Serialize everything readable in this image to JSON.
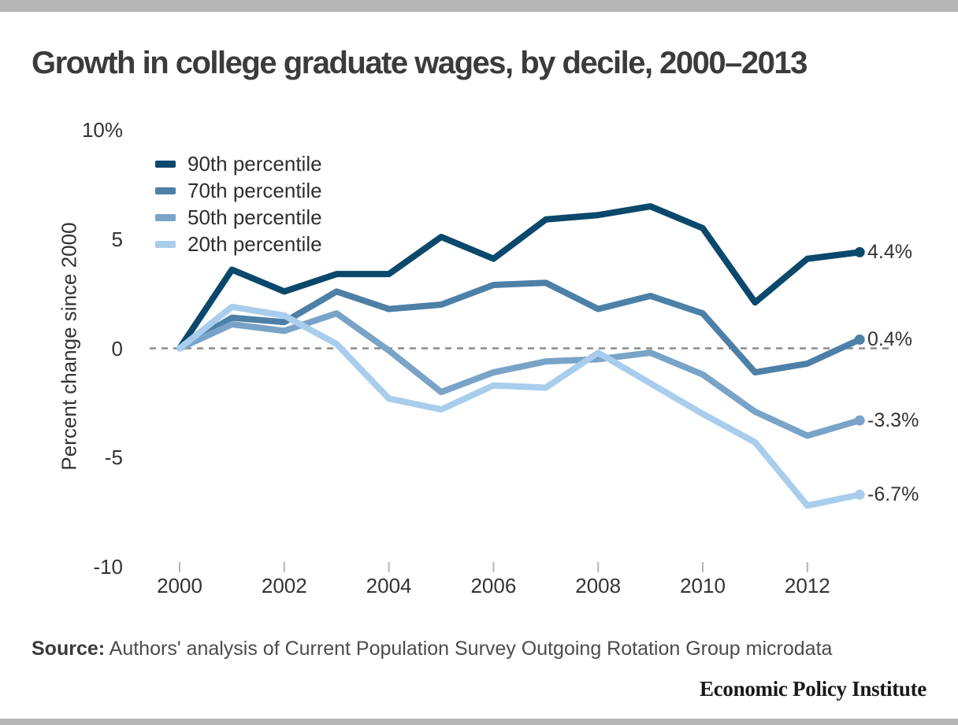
{
  "page": {
    "source": {
      "label": "Source:",
      "text": " Authors' analysis of Current Population Survey Outgoing Rotation Group microdata"
    },
    "footer_brand": "Economic Policy Institute",
    "colors": {
      "border_bar": "#b6b6b6",
      "title_text": "#3b3b3b",
      "axis_text": "#333333",
      "zero_line": "#8c8c8c",
      "tick_mark": "#b5b5b5"
    }
  },
  "chart_data": {
    "type": "line",
    "title": "Growth in college graduate wages, by decile, 2000–2013",
    "xlabel": "",
    "ylabel": "Percent change since 2000",
    "x": [
      2000,
      2001,
      2002,
      2003,
      2004,
      2005,
      2006,
      2007,
      2008,
      2009,
      2010,
      2011,
      2012,
      2013
    ],
    "x_tick_labels": [
      "2000",
      "2002",
      "2004",
      "2006",
      "2008",
      "2010",
      "2012"
    ],
    "x_tick_years": [
      2000,
      2002,
      2004,
      2006,
      2008,
      2010,
      2012
    ],
    "y_ticks": [
      {
        "label": "10%",
        "value": 10
      },
      {
        "label": "5",
        "value": 5
      },
      {
        "label": "0",
        "value": 0
      },
      {
        "label": "-5",
        "value": -5
      },
      {
        "label": "-10",
        "value": -10
      }
    ],
    "ylim": [
      -10,
      10
    ],
    "grid": false,
    "zero_line_style": "dashed",
    "legend_position": "top-left",
    "series": [
      {
        "name": "90th percentile",
        "color": "#0a486c",
        "end_label": "4.4%",
        "values": [
          0,
          3.6,
          2.6,
          3.4,
          3.4,
          5.1,
          4.1,
          5.9,
          6.1,
          6.5,
          5.5,
          2.1,
          4.1,
          4.4
        ]
      },
      {
        "name": "70th percentile",
        "color": "#4d80a7",
        "end_label": "0.4%",
        "values": [
          0,
          1.4,
          1.2,
          2.6,
          1.8,
          2.0,
          2.9,
          3.0,
          1.8,
          2.4,
          1.6,
          -1.1,
          -0.7,
          0.4
        ]
      },
      {
        "name": "50th percentile",
        "color": "#79a3c7",
        "end_label": "-3.3%",
        "values": [
          0,
          1.1,
          0.8,
          1.6,
          -0.1,
          -2.0,
          -1.1,
          -0.6,
          -0.5,
          -0.2,
          -1.2,
          -2.9,
          -4.0,
          -3.3
        ]
      },
      {
        "name": "20th percentile",
        "color": "#a9cdec",
        "end_label": "-6.7%",
        "values": [
          0,
          1.9,
          1.5,
          0.2,
          -2.3,
          -2.8,
          -1.7,
          -1.8,
          -0.2,
          -1.6,
          -3.0,
          -4.3,
          -7.2,
          -6.7
        ]
      }
    ]
  }
}
